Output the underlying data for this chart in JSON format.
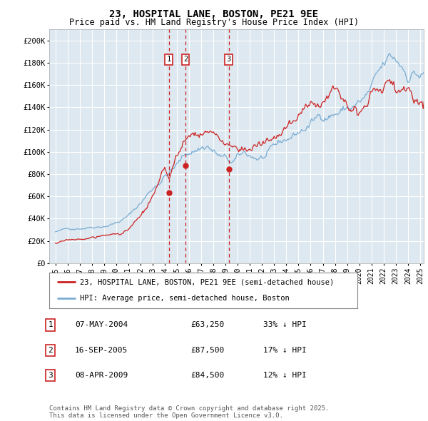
{
  "title": "23, HOSPITAL LANE, BOSTON, PE21 9EE",
  "subtitle": "Price paid vs. HM Land Registry's House Price Index (HPI)",
  "background_color": "#ffffff",
  "plot_bg_color": "#dde8f0",
  "grid_color": "#ffffff",
  "hpi_color": "#7aadd4",
  "price_color": "#cc2222",
  "vline_color": "#cc0000",
  "ylim": [
    0,
    210000
  ],
  "yticks": [
    0,
    20000,
    40000,
    60000,
    80000,
    100000,
    120000,
    140000,
    160000,
    180000,
    200000
  ],
  "ytick_labels": [
    "£0",
    "£20K",
    "£40K",
    "£60K",
    "£80K",
    "£100K",
    "£120K",
    "£140K",
    "£160K",
    "£180K",
    "£200K"
  ],
  "xmin_year": 1995,
  "xmax_year": 2025,
  "xtick_years": [
    1995,
    1996,
    1997,
    1998,
    1999,
    2000,
    2001,
    2002,
    2003,
    2004,
    2005,
    2006,
    2007,
    2008,
    2009,
    2010,
    2011,
    2012,
    2013,
    2014,
    2015,
    2016,
    2017,
    2018,
    2019,
    2020,
    2021,
    2022,
    2023,
    2024,
    2025
  ],
  "sale_markers": [
    {
      "label": "1",
      "date_x": 2004.35,
      "price": 63250,
      "date_str": "07-MAY-2004",
      "price_str": "£63,250",
      "hpi_str": "33% ↓ HPI"
    },
    {
      "label": "2",
      "date_x": 2005.71,
      "price": 87500,
      "date_str": "16-SEP-2005",
      "price_str": "£87,500",
      "hpi_str": "17% ↓ HPI"
    },
    {
      "label": "3",
      "date_x": 2009.27,
      "price": 84500,
      "date_str": "08-APR-2009",
      "price_str": "£84,500",
      "hpi_str": "12% ↓ HPI"
    }
  ],
  "legend_line1": "23, HOSPITAL LANE, BOSTON, PE21 9EE (semi-detached house)",
  "legend_line2": "HPI: Average price, semi-detached house, Boston",
  "footnote": "Contains HM Land Registry data © Crown copyright and database right 2025.\nThis data is licensed under the Open Government Licence v3.0."
}
